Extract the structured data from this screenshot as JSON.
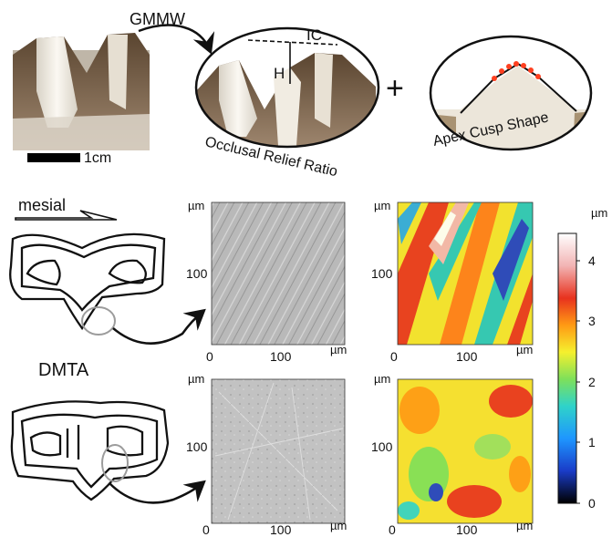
{
  "top": {
    "gmmw_label": "GMMW",
    "scale_bar_label": "1cm",
    "ic_label": "IC",
    "h_label": "H",
    "occlusal_label": "Occlusal Relief Ratio",
    "plus_sign": "+",
    "apex_label": "Apex Cusp Shape"
  },
  "left": {
    "mesial_label": "mesial",
    "dmta_label": "DMTA"
  },
  "axes": {
    "unit": "µm",
    "tick_0": "0",
    "tick_100": "100"
  },
  "colorbar": {
    "unit": "µm",
    "ticks": [
      "4",
      "3",
      "2",
      "1",
      "0"
    ],
    "range": [
      0,
      4.5
    ],
    "colors": [
      "#000000",
      "#1a3cc8",
      "#1e96ff",
      "#2fd3c9",
      "#7ee05a",
      "#f5f02e",
      "#ff9a14",
      "#e8321e",
      "#f2b4b4",
      "#ffffff"
    ]
  },
  "colors": {
    "tooth_enamel": "#ece6da",
    "tooth_brown": "#6a5030",
    "apex_dots": "#ff4020"
  }
}
